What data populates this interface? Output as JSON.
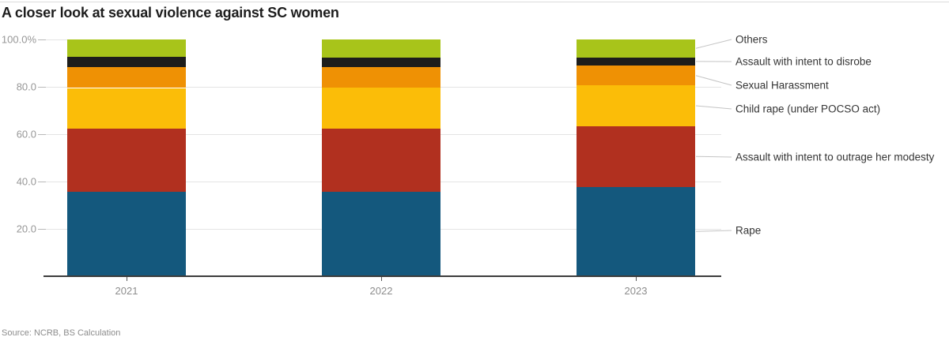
{
  "title": "A closer look at sexual violence against SC women",
  "source": "Source: NCRB, BS Calculation",
  "legend": {
    "items": [
      "Others",
      "Assault with intent to disrobe",
      "Sexual Harassment",
      "Child rape (under POCSO act)",
      "Assault with intent to outrage her modesty",
      "Rape"
    ]
  },
  "colors": {
    "rape": "#14587D",
    "modesty": "#B1301F",
    "child_rape": "#FBBD08",
    "sexual_harassment": "#EF9104",
    "disrobe": "#1D1D1B",
    "others": "#A8C41A",
    "axis_text": "#979797",
    "leader_line": "#c4c4c4"
  },
  "chart_data": {
    "type": "bar",
    "stacked": true,
    "unit": "percent",
    "title": "A closer look at sexual violence against SC women",
    "categories": [
      "2021",
      "2022",
      "2023"
    ],
    "series": [
      {
        "name": "Rape",
        "color": "#14587D",
        "values": [
          35.6,
          35.8,
          37.8
        ]
      },
      {
        "name": "Assault with intent to outrage her modesty",
        "color": "#B1301F",
        "values": [
          26.6,
          26.5,
          25.6
        ]
      },
      {
        "name": "Child rape (under POCSO act)",
        "color": "#FBBD08",
        "values": [
          17.3,
          17.5,
          17.2
        ]
      },
      {
        "name": "Sexual Harassment",
        "color": "#EF9104",
        "values": [
          8.9,
          8.6,
          8.3
        ]
      },
      {
        "name": "Assault with intent to disrobe",
        "color": "#1D1D1B",
        "values": [
          4.3,
          4.0,
          3.6
        ]
      },
      {
        "name": "Others",
        "color": "#A8C41A",
        "values": [
          7.3,
          7.6,
          7.5
        ]
      }
    ],
    "ylim": [
      0,
      100
    ],
    "yticks": [
      {
        "label": "100.0%",
        "value": 100
      },
      {
        "label": "80.0",
        "value": 80
      },
      {
        "label": "60.0",
        "value": 60
      },
      {
        "label": "40.0",
        "value": 40
      },
      {
        "label": "20.0",
        "value": 20
      }
    ],
    "grid": "horizontal",
    "legend_position": "right-labeled-with-leader-lines"
  }
}
